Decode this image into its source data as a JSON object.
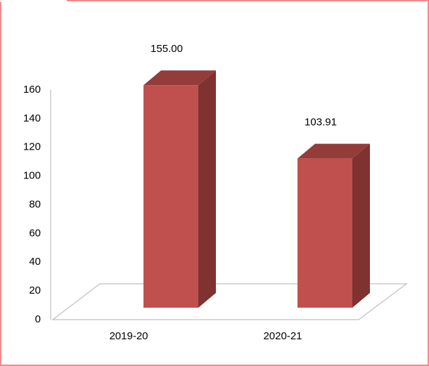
{
  "chart_data": {
    "type": "bar3d",
    "categories": [
      "2019-20",
      "2020-21"
    ],
    "values": [
      155,
      103.91
    ],
    "value_labels": [
      "155.00",
      "103.91"
    ],
    "color": "#c0504d",
    "ylim": [
      0,
      160
    ],
    "yticks": [
      0,
      20,
      40,
      60,
      80,
      100,
      120,
      140,
      160
    ]
  }
}
